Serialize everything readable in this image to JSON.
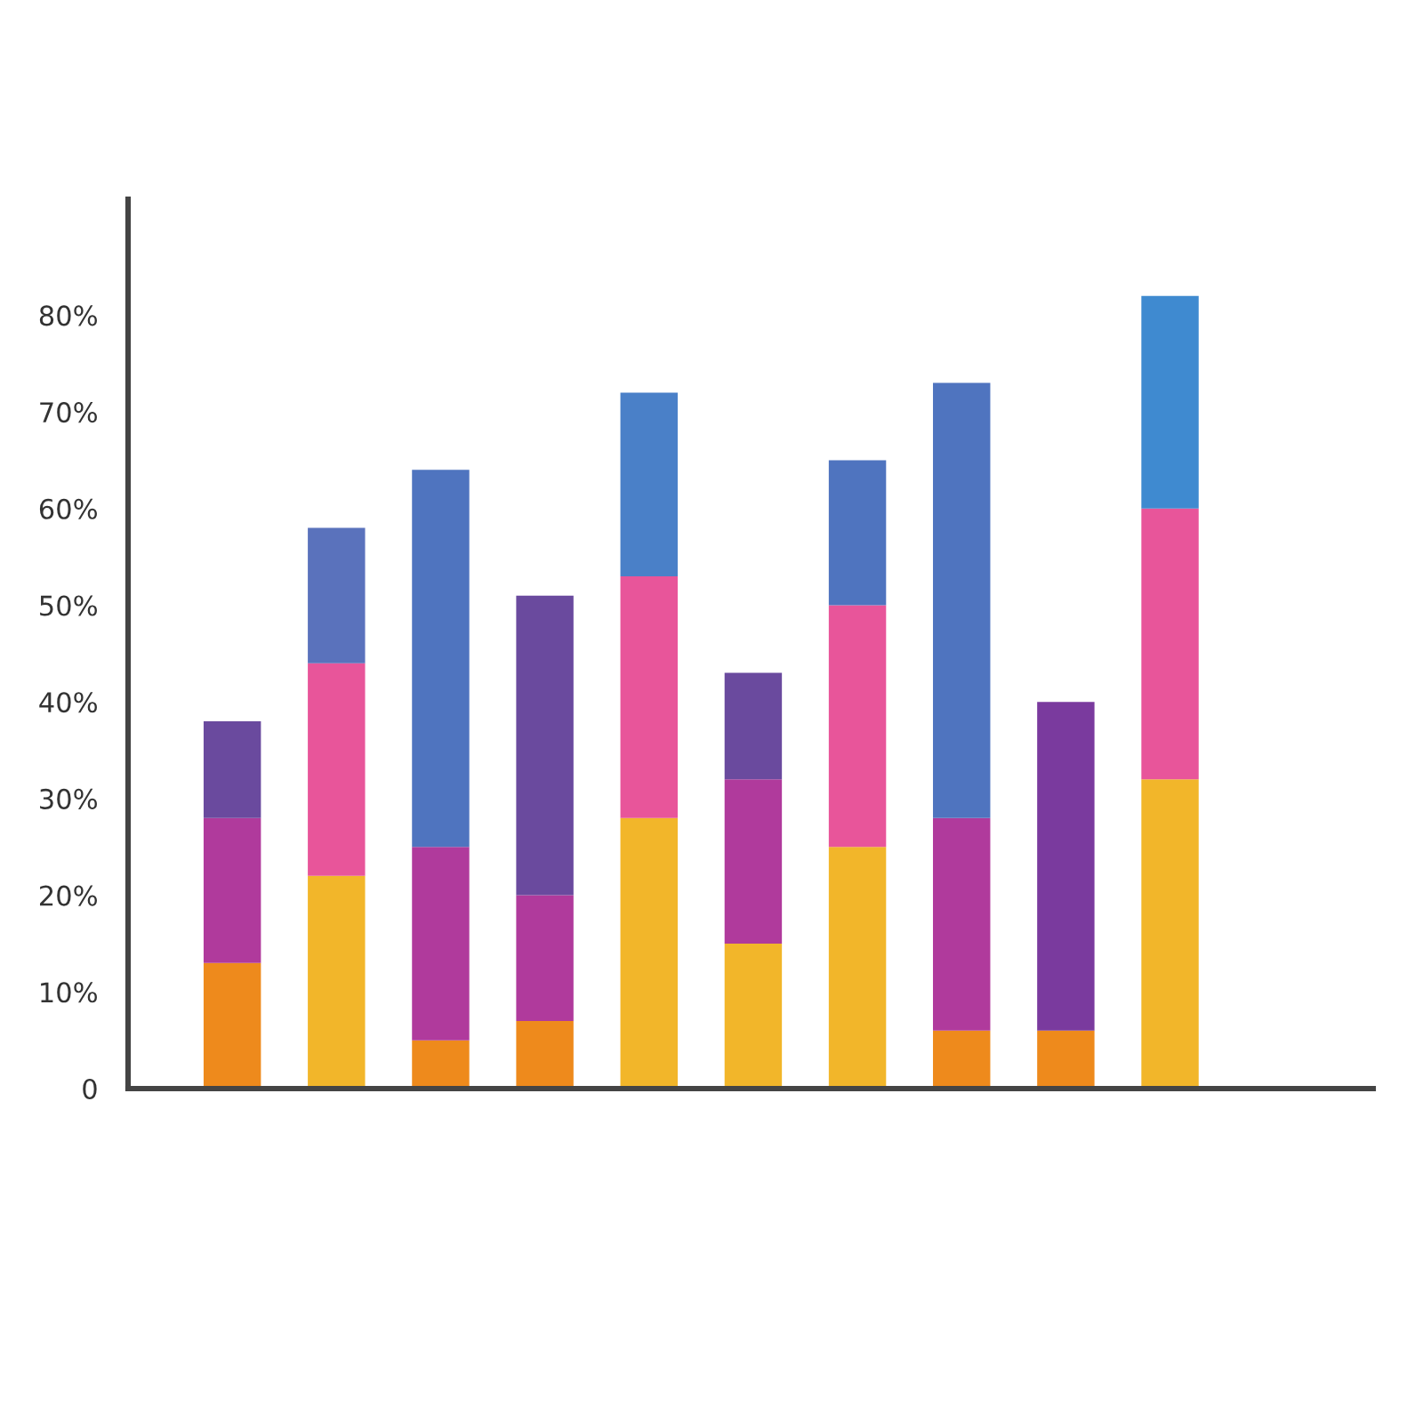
{
  "chart_data": {
    "type": "bar",
    "stacked": true,
    "categories": [
      null,
      null,
      null,
      null,
      null,
      null,
      null,
      null,
      null,
      null
    ],
    "series": [
      {
        "colors": [
          "#ee8a1c",
          "#f2b62a",
          "#ee8a1c",
          "#ee8a1c",
          "#f2b62a",
          "#f2b62a",
          "#f2b62a",
          "#ee8a1c",
          "#ee8a1c",
          "#f2b62a"
        ],
        "values": [
          13,
          22,
          5,
          7,
          28,
          15,
          25,
          6,
          6,
          32
        ]
      },
      {
        "colors": [
          "#b03a9c",
          "#e8559a",
          "#b03a9c",
          "#b03a9c",
          "#e8559a",
          "#b03a9c",
          "#e8559a",
          "#b03a9c",
          "#b03a9c",
          "#e8559a"
        ],
        "values": [
          15,
          22,
          20,
          13,
          25,
          17,
          25,
          22,
          null,
          28
        ]
      },
      {
        "colors": [
          "#6a4a9e",
          "#5a72bc",
          "#4f74bf",
          "#6a4a9e",
          "#4a80c8",
          "#6a4a9e",
          "#4f74bf",
          "#4f74bf",
          "#7a3a9e",
          "#3f8ad0"
        ],
        "values": [
          10,
          14,
          39,
          31,
          19,
          11,
          15,
          45,
          34,
          22
        ]
      }
    ],
    "ylim": [
      0,
      92
    ],
    "yticks": [
      {
        "value": 0,
        "label": "0"
      },
      {
        "value": 10,
        "label": "10%"
      },
      {
        "value": 20,
        "label": "20%"
      },
      {
        "value": 30,
        "label": "30%"
      },
      {
        "value": 40,
        "label": "40%"
      },
      {
        "value": 50,
        "label": "50%"
      },
      {
        "value": 60,
        "label": "60%"
      },
      {
        "value": 70,
        "label": "70%"
      },
      {
        "value": 80,
        "label": "80%"
      }
    ],
    "grid": false,
    "legend": false
  }
}
